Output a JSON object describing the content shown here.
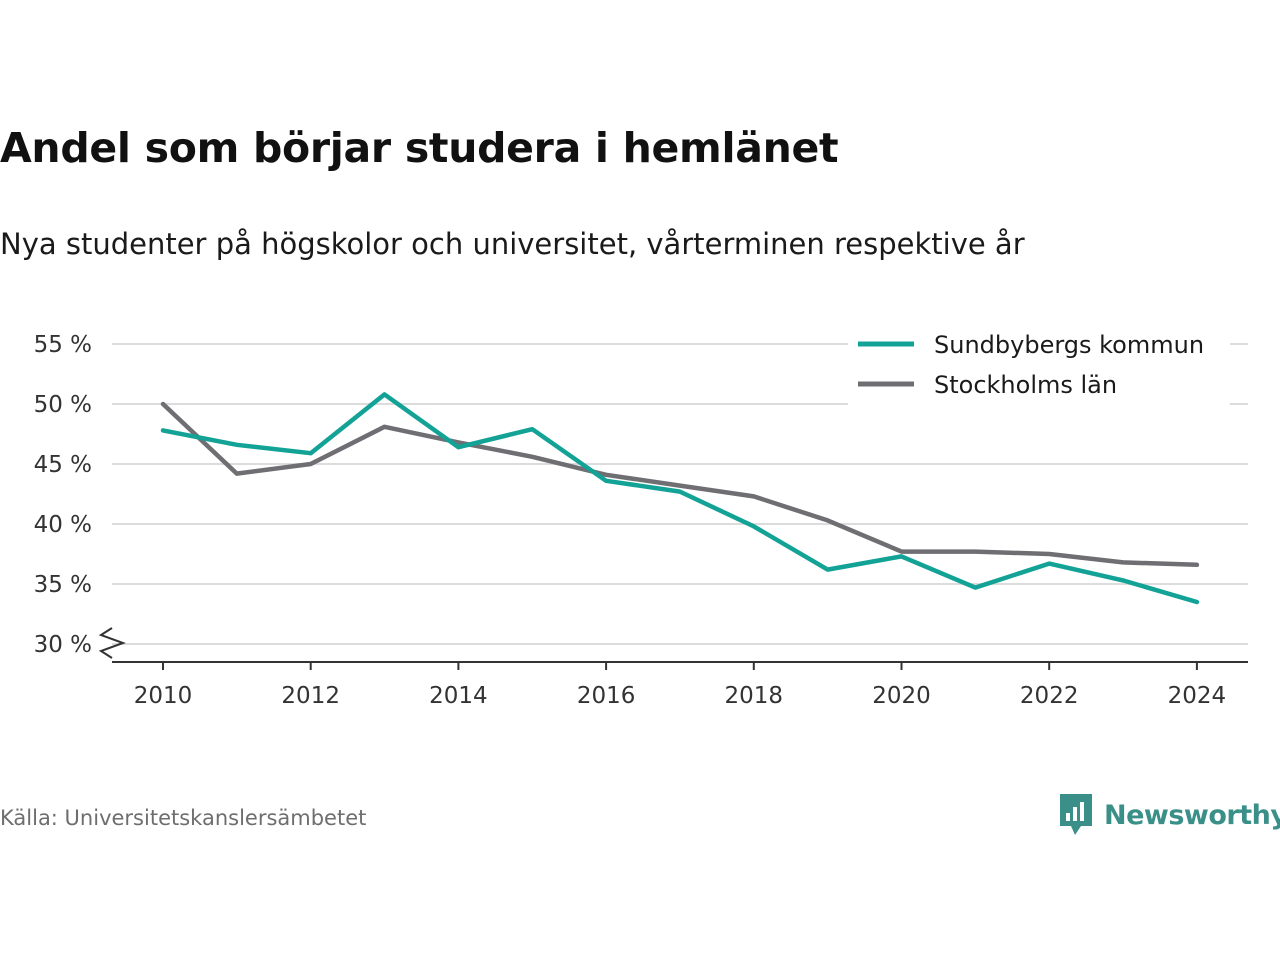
{
  "title": "Andel som börjar studera i hemlänet",
  "subtitle": "Nya studenter på högskolor och universitet, vårterminen respektive år",
  "source": "Källa: Universitetskanslersämbetet",
  "brand": {
    "name": "Newsworthy",
    "icon": "newsworthy-logo-icon",
    "color": "#3a8f88"
  },
  "chart_data": {
    "type": "line",
    "title": "Andel som börjar studera i hemlänet",
    "subtitle": "Nya studenter på högskolor och universitet, vårterminen respektive år",
    "xlabel": "",
    "ylabel": "",
    "x": [
      2010,
      2011,
      2012,
      2013,
      2014,
      2015,
      2016,
      2017,
      2018,
      2019,
      2020,
      2021,
      2022,
      2023,
      2024
    ],
    "x_ticks": [
      "2010",
      "2012",
      "2014",
      "2016",
      "2018",
      "2020",
      "2022",
      "2024"
    ],
    "y_ticks": [
      "30 %",
      "35 %",
      "40 %",
      "45 %",
      "50 %",
      "55 %"
    ],
    "y_tick_values": [
      30,
      35,
      40,
      45,
      50,
      55
    ],
    "xlim": [
      2009.3,
      2024.7
    ],
    "ylim": [
      28.5,
      55
    ],
    "y_axis_break": true,
    "grid": true,
    "legend_position": "top-right",
    "series": [
      {
        "name": "Sundbybergs kommun",
        "color": "#12a296",
        "values": [
          47.8,
          46.6,
          45.9,
          50.8,
          46.4,
          47.9,
          43.6,
          42.7,
          39.8,
          36.2,
          37.3,
          34.7,
          36.7,
          35.3,
          33.5
        ]
      },
      {
        "name": "Stockholms län",
        "color": "#6e6e73",
        "values": [
          50.0,
          44.2,
          45.0,
          48.1,
          46.8,
          45.6,
          44.1,
          43.2,
          42.3,
          40.3,
          37.7,
          37.7,
          37.5,
          36.8,
          36.6
        ]
      }
    ]
  }
}
